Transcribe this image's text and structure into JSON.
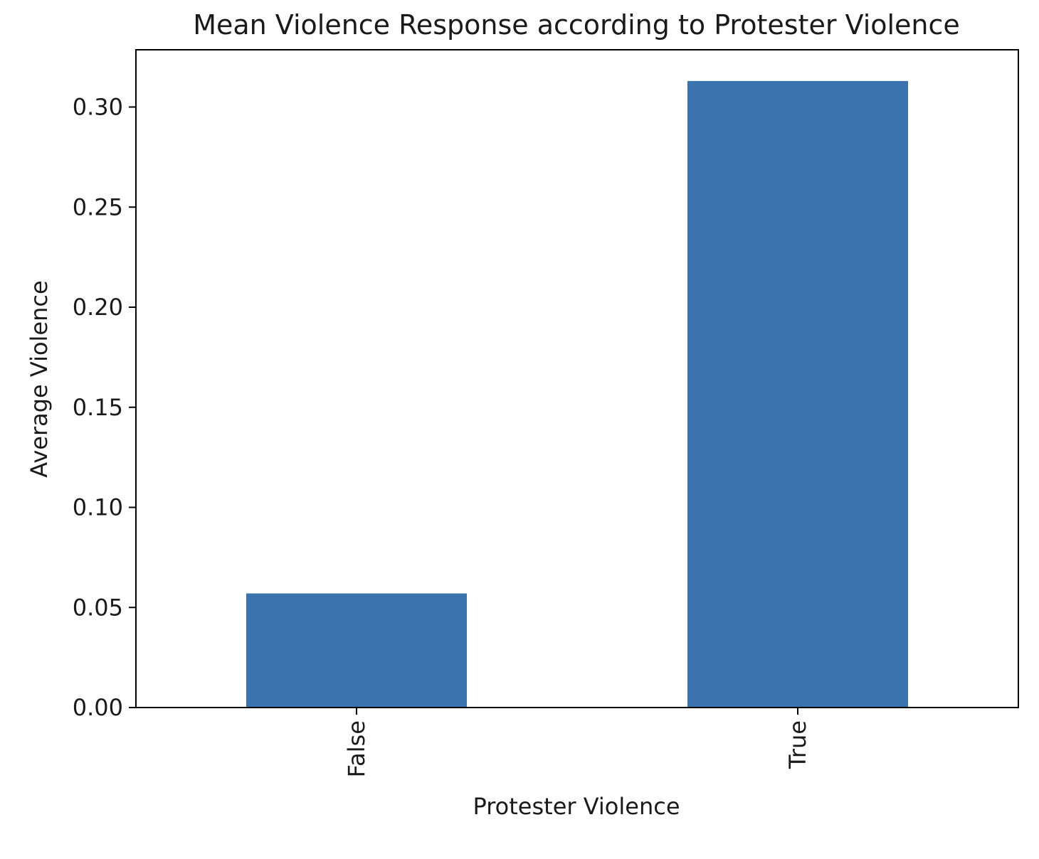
{
  "chart_data": {
    "type": "bar",
    "title": "Mean Violence Response according to Protester Violence",
    "xlabel": "Protester Violence",
    "ylabel": "Average Violence",
    "categories": [
      "False",
      "True"
    ],
    "values": [
      0.057,
      0.313
    ],
    "ylim": [
      0,
      0.3286
    ],
    "yticks": [
      0.0,
      0.05,
      0.1,
      0.15,
      0.2,
      0.25,
      0.3
    ],
    "ytick_labels": [
      "0.00",
      "0.05",
      "0.10",
      "0.15",
      "0.20",
      "0.25",
      "0.30"
    ],
    "bar_color": "#3a73ad",
    "grid": false,
    "xtick_rotation": "vertical"
  }
}
